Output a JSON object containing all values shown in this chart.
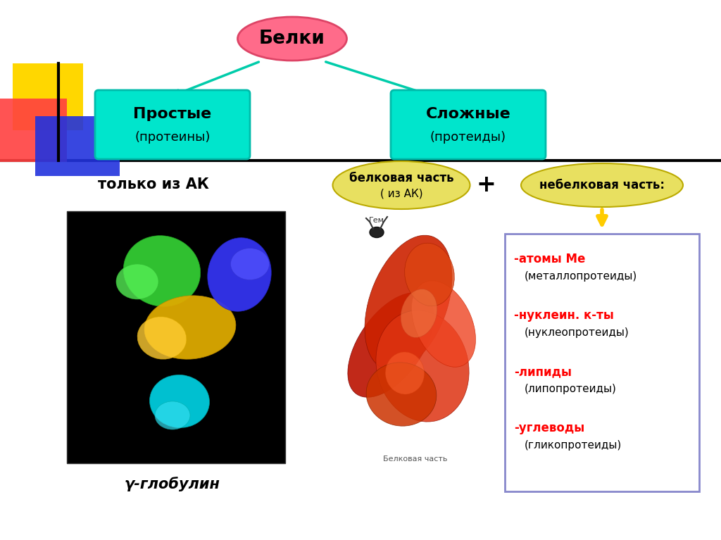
{
  "bg_color": "#ffffff",
  "title_text": "Белки",
  "title_ellipse_color": "#ff6b8a",
  "title_ellipse_edge": "#dd4466",
  "simple_box_text1": "Простые",
  "simple_box_text2": "(протеины)",
  "complex_box_text1": "Сложные",
  "complex_box_text2": "(протеиды)",
  "box_color": "#00e5cc",
  "box_edge": "#00bbaa",
  "only_ak_text": "только из АК",
  "protein_part_text1": "белковая часть",
  "protein_part_text2": "( из АК)",
  "protein_part_ellipse_color": "#e8e060",
  "nonprotein_text": "небелковая часть:",
  "nonprotein_ellipse_color": "#e8e060",
  "plus_text": "+",
  "list_items_red": [
    "-атомы Ме",
    "-нуклеин. к-ты",
    "-липиды",
    "-углеводы"
  ],
  "list_items_black": [
    "(металлопротеиды)",
    "(нуклеопротеиды)",
    "(липопротеиды)",
    "(гликопротеиды)"
  ],
  "gamma_text": "γ-глобулин",
  "arrow_color": "#00ccaa",
  "yellow_arrow_color": "#ffcc00",
  "list_box_edge": "#8888cc",
  "deco_yellow": "#FFD700",
  "deco_red": "#FF4040",
  "deco_blue": "#2233DD"
}
